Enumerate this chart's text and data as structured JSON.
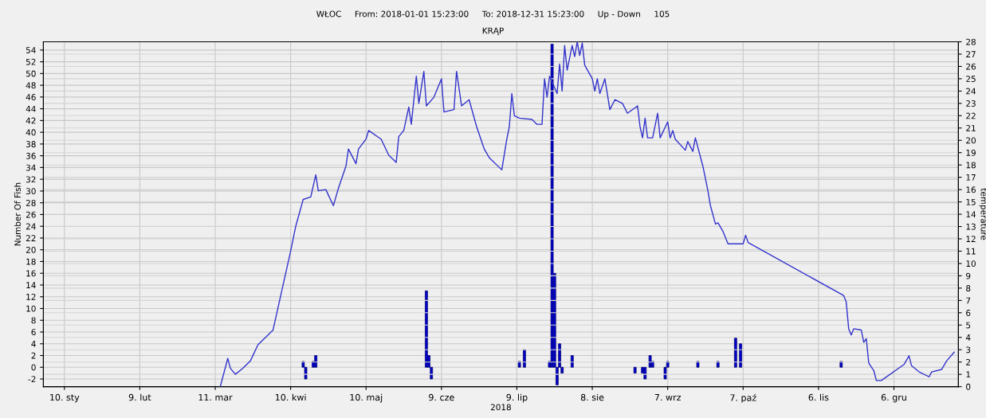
{
  "chart_data": {
    "type": "bar",
    "title": "WŁOC     From: 2018-01-01 15:23:00     To: 2018-12-31 15:23:00     Up - Down     105",
    "subtitle": "KRĄP",
    "xlabel": "2018",
    "ylabel": "Number Of Fish",
    "y2label": "temperature",
    "xlim": [
      "2018-01-01T15:23",
      "2018-12-31T15:23"
    ],
    "xticks": [
      {
        "value": "2018-01-10",
        "label": "10. sty"
      },
      {
        "value": "2018-02-09",
        "label": "9. lut"
      },
      {
        "value": "2018-03-11",
        "label": "11. mar"
      },
      {
        "value": "2018-04-10",
        "label": "10. kwi"
      },
      {
        "value": "2018-05-10",
        "label": "10. maj"
      },
      {
        "value": "2018-06-09",
        "label": "9. cze"
      },
      {
        "value": "2018-07-09",
        "label": "9. lip"
      },
      {
        "value": "2018-08-08",
        "label": "8. sie"
      },
      {
        "value": "2018-09-07",
        "label": "7. wrz"
      },
      {
        "value": "2018-10-07",
        "label": "7. paź"
      },
      {
        "value": "2018-11-06",
        "label": "6. lis"
      },
      {
        "value": "2018-12-06",
        "label": "6. gru"
      }
    ],
    "ylim": [
      -3.3,
      55.4
    ],
    "yticks": [
      -2,
      0,
      2,
      4,
      6,
      8,
      10,
      12,
      14,
      16,
      18,
      20,
      22,
      24,
      26,
      28,
      30,
      32,
      34,
      36,
      38,
      40,
      42,
      44,
      46,
      48,
      50,
      52,
      54
    ],
    "y2lim": [
      0,
      28
    ],
    "y2ticks": [
      0,
      1,
      2,
      3,
      4,
      5,
      6,
      7,
      8,
      9,
      10,
      11,
      12,
      13,
      14,
      15,
      16,
      17,
      18,
      19,
      20,
      21,
      22,
      23,
      24,
      25,
      26,
      27,
      28
    ],
    "grid": true,
    "series": [
      {
        "color": "#0000cc",
        "x": [
          "2018-04-15",
          "2018-04-16",
          "2018-04-19",
          "2018-04-20",
          "2018-06-03",
          "2018-06-04",
          "2018-06-05",
          "2018-07-10",
          "2018-07-12",
          "2018-07-22",
          "2018-07-23",
          "2018-07-24",
          "2018-07-25",
          "2018-07-26",
          "2018-07-27",
          "2018-07-31",
          "2018-08-25",
          "2018-08-28",
          "2018-08-29",
          "2018-08-31",
          "2018-09-01",
          "2018-09-06",
          "2018-09-07",
          "2018-09-19",
          "2018-09-27",
          "2018-10-04",
          "2018-10-06",
          "2018-11-15"
        ],
        "values": [
          1,
          -2,
          1,
          2,
          13,
          2,
          -2,
          1,
          3,
          1,
          55,
          16,
          -3,
          4,
          -1,
          2,
          -1,
          -1,
          -2,
          2,
          1,
          -2,
          1,
          1,
          1,
          5,
          4,
          1
        ]
      },
      {
        "type": "line",
        "axis": "y2",
        "color": "#3333cc",
        "x": [
          "2018-03-13",
          "2018-03-16",
          "2018-03-17",
          "2018-03-19",
          "2018-03-22",
          "2018-03-25",
          "2018-03-28",
          "2018-04-01",
          "2018-04-03",
          "2018-04-10",
          "2018-04-12",
          "2018-04-15",
          "2018-04-18",
          "2018-04-20",
          "2018-04-21",
          "2018-04-24",
          "2018-04-27",
          "2018-04-29",
          "2018-05-02",
          "2018-05-03",
          "2018-05-06",
          "2018-05-07",
          "2018-05-10",
          "2018-05-11",
          "2018-05-16",
          "2018-05-19",
          "2018-05-22",
          "2018-05-23",
          "2018-05-25",
          "2018-05-27",
          "2018-05-28",
          "2018-05-30",
          "2018-05-31",
          "2018-06-02",
          "2018-06-03",
          "2018-06-06",
          "2018-06-09",
          "2018-06-10",
          "2018-06-14",
          "2018-06-15",
          "2018-06-17",
          "2018-06-20",
          "2018-06-23",
          "2018-06-26",
          "2018-06-28",
          "2018-07-03",
          "2018-07-05",
          "2018-07-06",
          "2018-07-07",
          "2018-07-08",
          "2018-07-10",
          "2018-07-15",
          "2018-07-17",
          "2018-07-19",
          "2018-07-20",
          "2018-07-21",
          "2018-07-22",
          "2018-07-25",
          "2018-07-26",
          "2018-07-27",
          "2018-07-28",
          "2018-07-29",
          "2018-07-31",
          "2018-08-01",
          "2018-08-02",
          "2018-08-03",
          "2018-08-04",
          "2018-08-05",
          "2018-08-08",
          "2018-08-09",
          "2018-08-10",
          "2018-08-11",
          "2018-08-13",
          "2018-08-15",
          "2018-08-17",
          "2018-08-20",
          "2018-08-22",
          "2018-08-26",
          "2018-08-27",
          "2018-08-28",
          "2018-08-29",
          "2018-08-30",
          "2018-09-01",
          "2018-09-03",
          "2018-09-04",
          "2018-09-07",
          "2018-09-08",
          "2018-09-09",
          "2018-09-10",
          "2018-09-14",
          "2018-09-15",
          "2018-09-17",
          "2018-09-18",
          "2018-09-21",
          "2018-09-23",
          "2018-09-24",
          "2018-09-26",
          "2018-09-27",
          "2018-09-29",
          "2018-10-01",
          "2018-10-07",
          "2018-10-08",
          "2018-10-09",
          "2018-11-16",
          "2018-11-17",
          "2018-11-18",
          "2018-11-19",
          "2018-11-20",
          "2018-11-23",
          "2018-11-24",
          "2018-11-25",
          "2018-11-26",
          "2018-11-28",
          "2018-11-29",
          "2018-12-01",
          "2018-12-10",
          "2018-12-12",
          "2018-12-13",
          "2018-12-16",
          "2018-12-20",
          "2018-12-21",
          "2018-12-25",
          "2018-12-27",
          "2018-12-30"
        ],
        "values": [
          0,
          2.3,
          1.5,
          1.0,
          1.5,
          2.1,
          3.4,
          4.2,
          4.6,
          11.0,
          13.0,
          15.2,
          15.4,
          17.2,
          15.9,
          16.0,
          14.7,
          16.1,
          17.9,
          19.3,
          18.1,
          19.3,
          20.1,
          20.8,
          20.1,
          18.8,
          18.2,
          20.3,
          20.8,
          22.7,
          21.3,
          25.2,
          23.0,
          25.6,
          22.8,
          23.5,
          25.0,
          22.3,
          22.5,
          25.6,
          22.8,
          23.3,
          21.1,
          19.3,
          18.6,
          17.6,
          20.1,
          21.1,
          23.8,
          22.0,
          21.8,
          21.7,
          21.3,
          21.3,
          25.0,
          23.5,
          25.2,
          23.8,
          26.2,
          24.0,
          27.7,
          25.7,
          27.7,
          26.8,
          28.0,
          26.9,
          27.9,
          26.1,
          25.0,
          24.0,
          25.0,
          23.8,
          25.0,
          22.5,
          23.3,
          23.0,
          22.2,
          22.8,
          21.1,
          20.2,
          21.8,
          20.2,
          20.2,
          22.2,
          20.2,
          21.5,
          20.2,
          20.8,
          20.1,
          19.2,
          19.9,
          19.1,
          20.2,
          17.9,
          15.9,
          14.7,
          13.2,
          13.3,
          12.6,
          11.6,
          11.6,
          12.3,
          11.7,
          7.4,
          6.9,
          4.7,
          4.2,
          4.7,
          4.6,
          3.6,
          3.9,
          1.9,
          1.3,
          0.5,
          0.5,
          1.8,
          2.5,
          1.7,
          1.2,
          0.8,
          1.2,
          1.4,
          2.1,
          2.8
        ]
      }
    ]
  }
}
